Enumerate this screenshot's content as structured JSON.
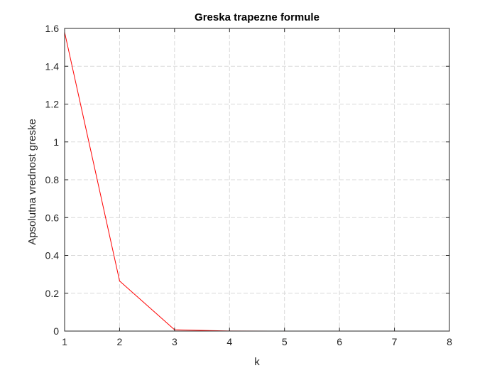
{
  "chart_data": {
    "type": "line",
    "title": "Greska trapezne formule",
    "xlabel": "k",
    "ylabel": "Apsolutna vrednost greske",
    "xlim": [
      1,
      8
    ],
    "ylim": [
      0,
      1.6
    ],
    "xticks": [
      "1",
      "2",
      "3",
      "4",
      "5",
      "6",
      "7",
      "8"
    ],
    "yticks": [
      "0",
      "0.2",
      "0.4",
      "0.6",
      "0.8",
      "1",
      "1.2",
      "1.4",
      "1.6"
    ],
    "grid": true,
    "series": [
      {
        "x": [
          1,
          2,
          3,
          4,
          5,
          6,
          7,
          8
        ],
        "values": [
          1.58,
          0.265,
          0.007,
          0.0004,
          2e-05,
          1e-06,
          1e-07,
          1e-08
        ],
        "color": "#ff0000"
      }
    ]
  }
}
